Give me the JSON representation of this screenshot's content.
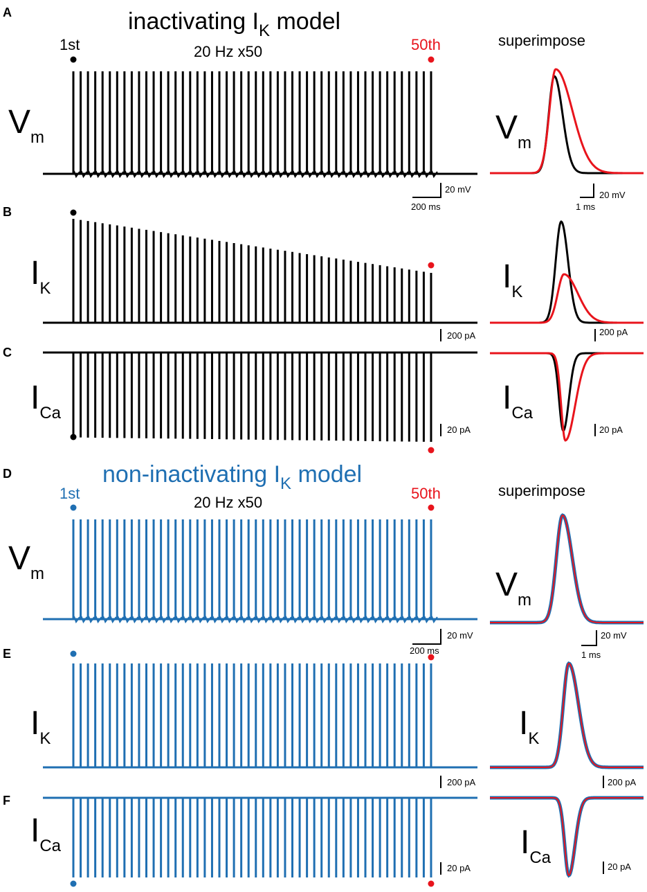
{
  "colors": {
    "black": "#000000",
    "blue": "#1f6fb2",
    "red": "#e8141c"
  },
  "chart_data": [
    {
      "type": "line",
      "panel": "A",
      "title": "inactivating I",
      "title_sub": "K",
      "title_tail": " model",
      "stim_label": "20 Hz x50",
      "first_label": "1st",
      "last_label": "50th",
      "ylabel": "V",
      "ylabel_sub": "m",
      "spike_count": 50,
      "frequency_hz": 20,
      "scale_y": "20 mV",
      "scale_x": "200 ms",
      "superimpose_label": "superimpose",
      "overlay_scale_y": "20 mV",
      "overlay_scale_x": "1 ms",
      "overlay_ylabel": "V",
      "overlay_ylabel_sub": "m"
    },
    {
      "type": "line",
      "panel": "B",
      "ylabel": "I",
      "ylabel_sub": "K",
      "spike_count": 50,
      "peak_first_rel": 1.0,
      "peak_last_rel": 0.48,
      "scale_y": "200 pA",
      "overlay_ylabel": "I",
      "overlay_ylabel_sub": "K",
      "overlay_scale_y": "200 pA"
    },
    {
      "type": "line",
      "panel": "C",
      "ylabel": "I",
      "ylabel_sub": "Ca",
      "spike_count": 50,
      "peak_first_rel": 0.95,
      "peak_last_rel": 1.0,
      "scale_y": "20 pA",
      "overlay_ylabel": "I",
      "overlay_ylabel_sub": "Ca",
      "overlay_scale_y": "20 pA"
    },
    {
      "type": "line",
      "panel": "D",
      "title": "non-inactivating I",
      "title_sub": "K",
      "title_tail": " model",
      "stim_label": "20 Hz x50",
      "first_label": "1st",
      "last_label": "50th",
      "ylabel": "V",
      "ylabel_sub": "m",
      "spike_count": 50,
      "frequency_hz": 20,
      "scale_y": "20 mV",
      "scale_x": "200 ms",
      "superimpose_label": "superimpose",
      "overlay_scale_y": "20 mV",
      "overlay_scale_x": "1 ms",
      "overlay_ylabel": "V",
      "overlay_ylabel_sub": "m"
    },
    {
      "type": "line",
      "panel": "E",
      "ylabel": "I",
      "ylabel_sub": "K",
      "spike_count": 50,
      "peak_first_rel": 1.0,
      "peak_last_rel": 1.0,
      "scale_y": "200 pA",
      "overlay_ylabel": "I",
      "overlay_ylabel_sub": "K",
      "overlay_scale_y": "200 pA"
    },
    {
      "type": "line",
      "panel": "F",
      "ylabel": "I",
      "ylabel_sub": "Ca",
      "spike_count": 50,
      "peak_first_rel": 1.0,
      "peak_last_rel": 1.0,
      "scale_y": "20 pA",
      "overlay_ylabel": "I",
      "overlay_ylabel_sub": "Ca",
      "overlay_scale_y": "20 pA"
    }
  ]
}
